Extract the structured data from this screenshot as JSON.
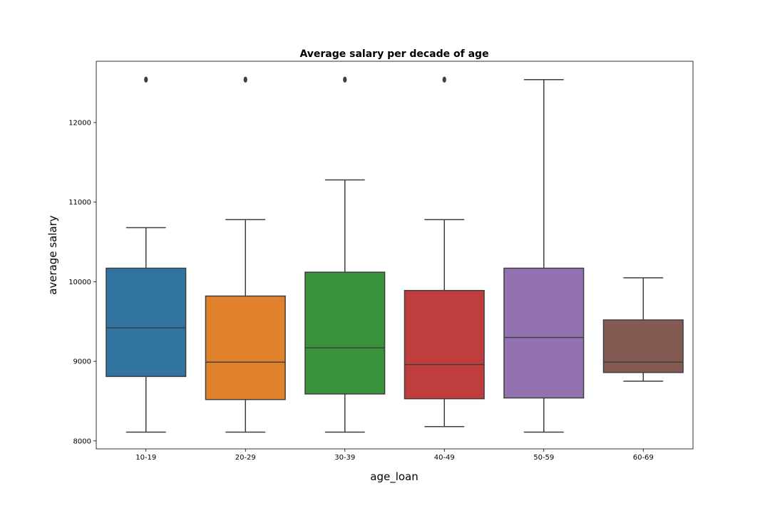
{
  "chart_data": {
    "type": "box",
    "title": "Average salary per decade of age",
    "xlabel": "age_loan",
    "ylabel": "average salary",
    "ylim": [
      7900,
      12770
    ],
    "yticks": [
      8000,
      9000,
      10000,
      11000,
      12000
    ],
    "ytick_labels": [
      "8000",
      "9000",
      "10000",
      "11000",
      "12000"
    ],
    "grid": false,
    "categories": [
      "10-19",
      "20-29",
      "30-39",
      "40-49",
      "50-59",
      "60-69"
    ],
    "boxes": [
      {
        "category": "10-19",
        "whisker_low": 8110,
        "q1": 8810,
        "median": 9420,
        "q3": 10170,
        "whisker_high": 10680,
        "outliers": [
          12540
        ],
        "color": "#3274a1"
      },
      {
        "category": "20-29",
        "whisker_low": 8110,
        "q1": 8520,
        "median": 8990,
        "q3": 9820,
        "whisker_high": 10780,
        "outliers": [
          12540
        ],
        "color": "#e1812c"
      },
      {
        "category": "30-39",
        "whisker_low": 8110,
        "q1": 8590,
        "median": 9170,
        "q3": 10120,
        "whisker_high": 11280,
        "outliers": [
          12540
        ],
        "color": "#3a923a"
      },
      {
        "category": "40-49",
        "whisker_low": 8180,
        "q1": 8530,
        "median": 8960,
        "q3": 9890,
        "whisker_high": 10780,
        "outliers": [
          12540
        ],
        "color": "#c03d3e"
      },
      {
        "category": "50-59",
        "whisker_low": 8110,
        "q1": 8540,
        "median": 9300,
        "q3": 10170,
        "whisker_high": 12540,
        "outliers": [],
        "color": "#9372b2"
      },
      {
        "category": "60-69",
        "whisker_low": 8750,
        "q1": 8860,
        "median": 8990,
        "q3": 9520,
        "whisker_high": 10050,
        "outliers": [],
        "color": "#845b53"
      }
    ],
    "line_color": "#3f3f3f"
  }
}
